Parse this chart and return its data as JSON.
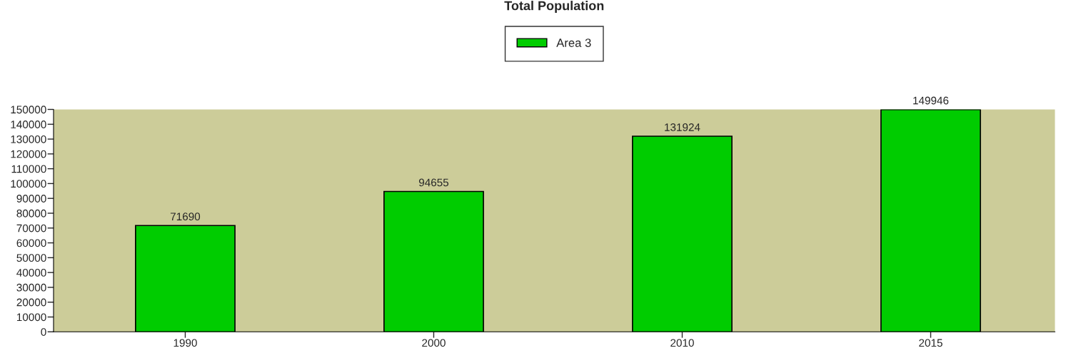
{
  "chart_data": {
    "type": "bar",
    "title": "Total Population",
    "categories": [
      "1990",
      "2000",
      "2010",
      "2015"
    ],
    "series": [
      {
        "name": "Area 3",
        "color": "#00cc00",
        "values": [
          71690,
          94655,
          131924,
          149946
        ]
      }
    ],
    "ylim": [
      0,
      150000
    ],
    "yticks": [
      0,
      10000,
      20000,
      30000,
      40000,
      50000,
      60000,
      70000,
      80000,
      90000,
      100000,
      110000,
      120000,
      130000,
      140000,
      150000
    ],
    "grid": false,
    "legend": "top",
    "data_labels": true
  }
}
